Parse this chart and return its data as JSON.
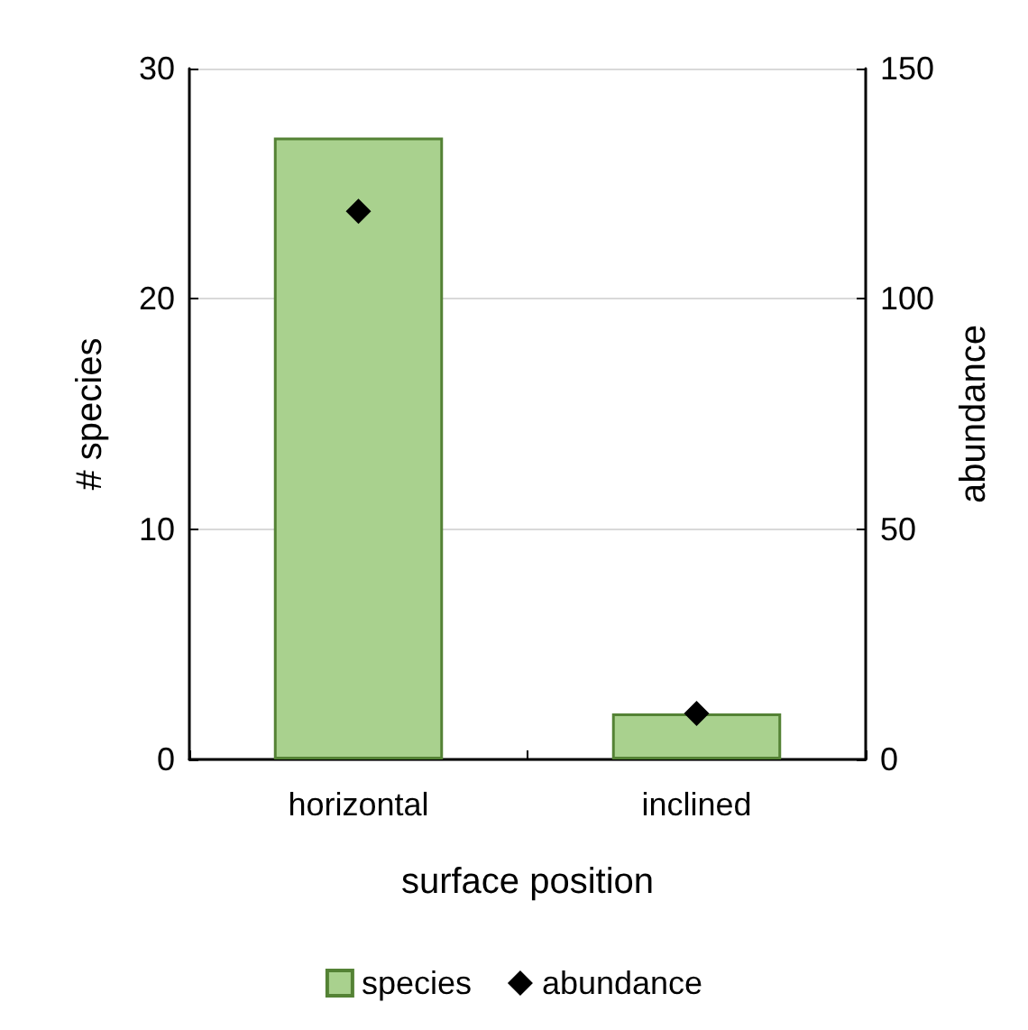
{
  "chart_data": {
    "type": "bar",
    "xlabel": "surface position",
    "ylabel": "# species",
    "y2label": "abundance",
    "categories": [
      "horizontal",
      "inclined"
    ],
    "series": [
      {
        "name": "species",
        "color": "#a9d18e",
        "values": [
          27,
          2
        ]
      },
      {
        "name": "abundance",
        "type": "scatter",
        "axis": "y2",
        "color": "#000000",
        "values": [
          119,
          10
        ]
      }
    ],
    "ylim": [
      0,
      30
    ],
    "yticks": [
      0,
      10,
      20,
      30
    ],
    "y2lim": [
      0,
      150
    ],
    "y2ticks": [
      0,
      50,
      100,
      150
    ],
    "grid": "y",
    "legend": "bottom",
    "marker": "diamond"
  }
}
